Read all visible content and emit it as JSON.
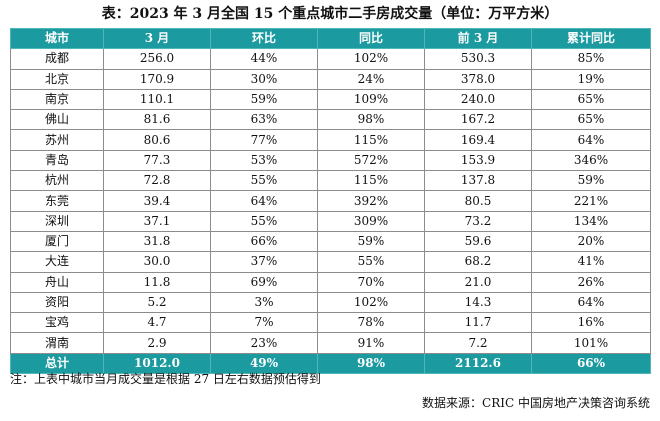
{
  "title": "表：2023 年 3 月全国 15 个重点城市二手房成交量（单位：万平方米）",
  "table": {
    "headers": [
      "城市",
      "3 月",
      "环比",
      "同比",
      "前 3 月",
      "累计同比"
    ],
    "rows": [
      [
        "成都",
        "256.0",
        "44%",
        "102%",
        "530.3",
        "85%"
      ],
      [
        "北京",
        "170.9",
        "30%",
        "24%",
        "378.0",
        "19%"
      ],
      [
        "南京",
        "110.1",
        "59%",
        "109%",
        "240.0",
        "65%"
      ],
      [
        "佛山",
        "81.6",
        "63%",
        "98%",
        "167.2",
        "65%"
      ],
      [
        "苏州",
        "80.6",
        "77%",
        "115%",
        "169.4",
        "64%"
      ],
      [
        "青岛",
        "77.3",
        "53%",
        "572%",
        "153.9",
        "346%"
      ],
      [
        "杭州",
        "72.8",
        "55%",
        "115%",
        "137.8",
        "59%"
      ],
      [
        "东莞",
        "39.4",
        "64%",
        "392%",
        "80.5",
        "221%"
      ],
      [
        "深圳",
        "37.1",
        "55%",
        "309%",
        "73.2",
        "134%"
      ],
      [
        "厦门",
        "31.8",
        "66%",
        "59%",
        "59.6",
        "20%"
      ],
      [
        "大连",
        "30.0",
        "37%",
        "55%",
        "68.2",
        "41%"
      ],
      [
        "舟山",
        "11.8",
        "69%",
        "70%",
        "21.0",
        "26%"
      ],
      [
        "资阳",
        "5.2",
        "3%",
        "102%",
        "14.3",
        "64%"
      ],
      [
        "宝鸡",
        "4.7",
        "7%",
        "78%",
        "11.7",
        "16%"
      ],
      [
        "渭南",
        "2.9",
        "23%",
        "91%",
        "7.2",
        "101%"
      ]
    ],
    "total": [
      "总计",
      "1012.0",
      "49%",
      "98%",
      "2112.6",
      "66%"
    ]
  },
  "note": "注：上表中城市当月成交量是根据 27 日左右数据预估得到",
  "source": "数据来源：CRIC 中国房地产决策咨询系统",
  "colors": {
    "header_bg": "#1b9aa0",
    "header_text": "#ffffff",
    "border": "#8c8c8c"
  }
}
